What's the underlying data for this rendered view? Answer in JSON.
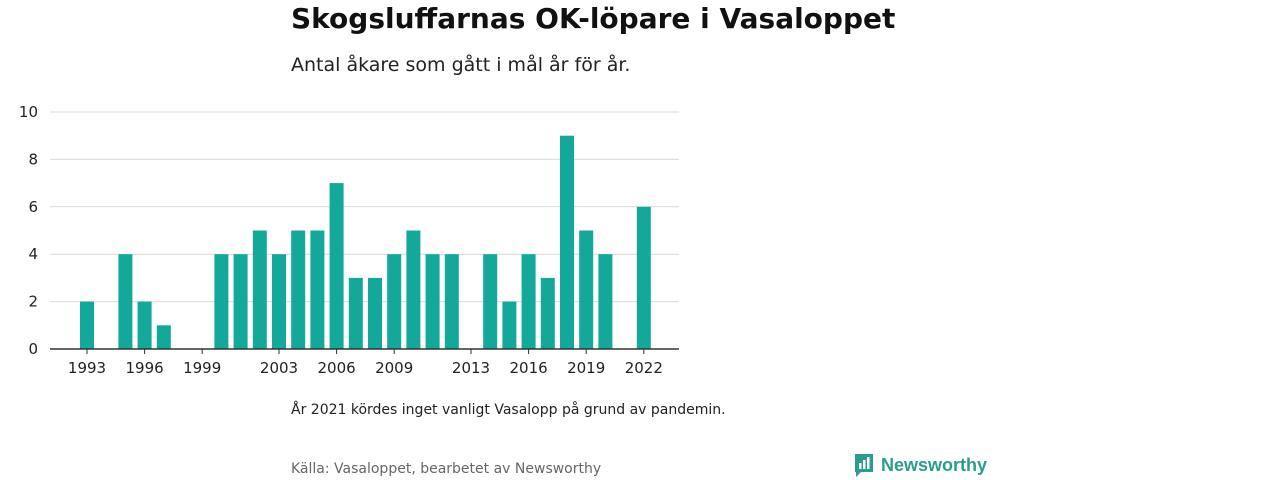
{
  "header": {
    "title": "Skogsluffarnas OK-löpare i Vasaloppet",
    "subtitle": "Antal åkare som gått i mål år för år."
  },
  "footer": {
    "note": "År 2021 kördes inget vanligt Vasalopp på grund av pandemin.",
    "source": "Källa: Vasaloppet, bearbetet av Newsworthy",
    "brand": "Newsworthy"
  },
  "colors": {
    "bar": "#14a89a",
    "grid": "#d9d9d9",
    "axis": "#333333",
    "brand": "#2a9d8f"
  },
  "chart_data": {
    "type": "bar",
    "x": [
      1993,
      1994,
      1995,
      1996,
      1997,
      1998,
      1999,
      2000,
      2001,
      2002,
      2003,
      2004,
      2005,
      2006,
      2007,
      2008,
      2009,
      2010,
      2011,
      2012,
      2013,
      2014,
      2015,
      2016,
      2017,
      2018,
      2019,
      2020,
      2021,
      2022
    ],
    "values": [
      2,
      0,
      4,
      2,
      1,
      0,
      0,
      4,
      4,
      5,
      4,
      5,
      5,
      7,
      3,
      3,
      4,
      5,
      4,
      4,
      0,
      4,
      2,
      4,
      3,
      9,
      5,
      4,
      0,
      6
    ],
    "xtick_labels": [
      "1993",
      "1996",
      "1999",
      "2003",
      "2006",
      "2009",
      "2013",
      "2016",
      "2019",
      "2022"
    ],
    "yticks": [
      0,
      2,
      4,
      6,
      8,
      10
    ],
    "ylim": [
      0,
      10
    ],
    "grid": true
  }
}
